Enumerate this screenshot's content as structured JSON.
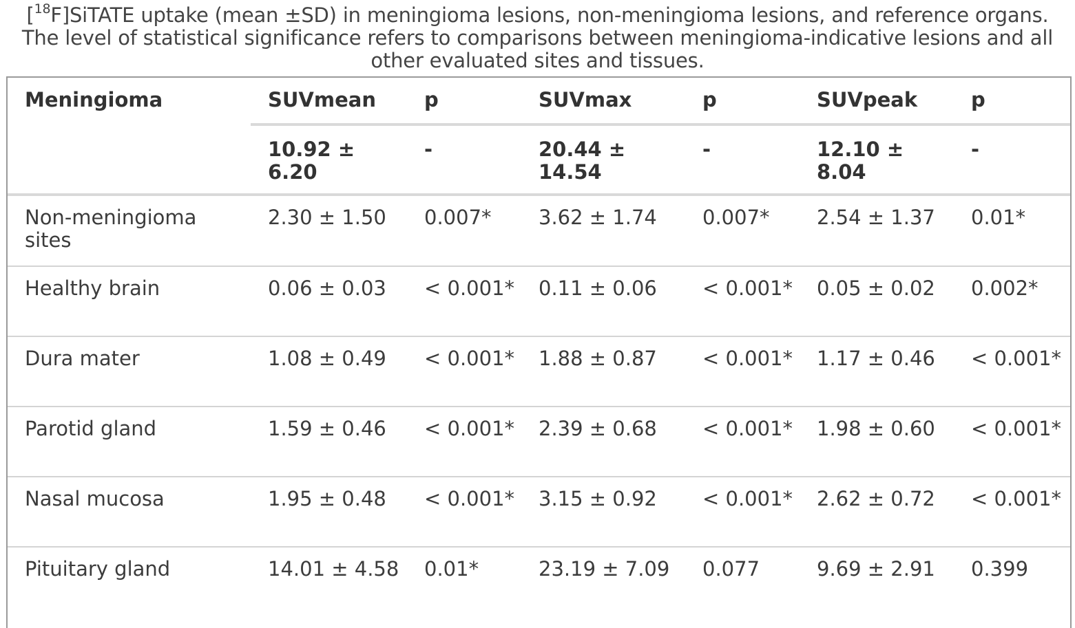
{
  "caption": {
    "line1_prefix": "[",
    "line1_sup": "18",
    "line1_rest": "F]SiTATE uptake (mean ±SD) in meningioma lesions, non-meningioma lesions, and reference organs.",
    "line2": "The level of statistical significance refers to comparisons between meningioma-indicative lesions and all",
    "line3": "other evaluated sites and tissues."
  },
  "table": {
    "headers": [
      "Meningioma",
      "SUVmean",
      "p",
      "SUVmax",
      "p",
      "SUVpeak",
      "p"
    ],
    "reference_row": [
      "10.92 ± 6.20",
      "-",
      "20.44 ± 14.54",
      "-",
      "12.10 ± 8.04",
      "-"
    ],
    "rows": [
      [
        "Non-meningioma sites",
        "2.30 ± 1.50",
        "0.007*",
        "3.62 ± 1.74",
        "0.007*",
        "2.54 ± 1.37",
        "0.01*"
      ],
      [
        "Healthy brain",
        "0.06 ± 0.03",
        "< 0.001*",
        "0.11 ± 0.06",
        "< 0.001*",
        "0.05 ± 0.02",
        "0.002*"
      ],
      [
        "Dura mater",
        "1.08 ± 0.49",
        "< 0.001*",
        "1.88 ± 0.87",
        "< 0.001*",
        "1.17 ± 0.46",
        "< 0.001*"
      ],
      [
        "Parotid gland",
        "1.59 ± 0.46",
        "< 0.001*",
        "2.39 ± 0.68",
        "< 0.001*",
        "1.98 ± 0.60",
        "< 0.001*"
      ],
      [
        "Nasal mucosa",
        "1.95 ± 0.48",
        "< 0.001*",
        "3.15 ± 0.92",
        "< 0.001*",
        "2.62 ± 0.72",
        "< 0.001*"
      ],
      [
        "Pituitary gland",
        "14.01 ± 4.58",
        "0.01*",
        "23.19 ± 7.09",
        "0.077",
        "9.69 ± 2.91",
        "0.399"
      ]
    ]
  }
}
